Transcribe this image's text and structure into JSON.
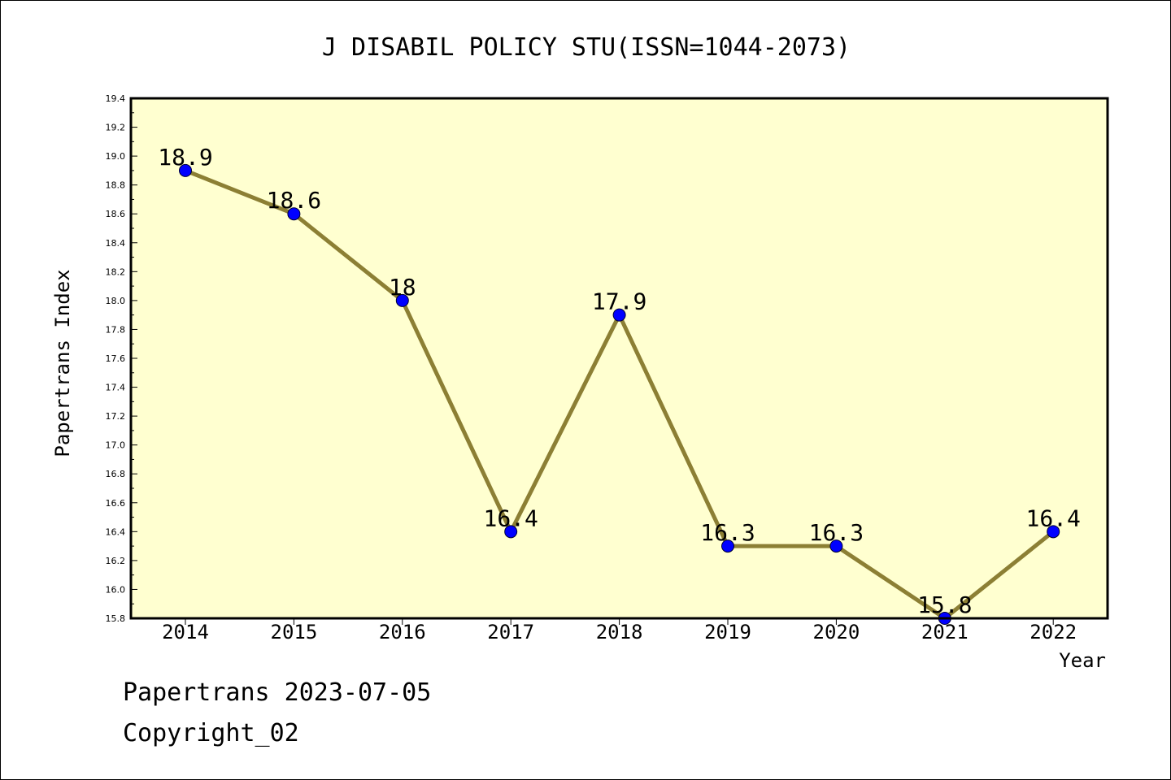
{
  "chart_data": {
    "type": "line",
    "title": "J DISABIL POLICY STU(ISSN=1044-2073)",
    "xlabel": "Year",
    "ylabel": "Papertrans Index",
    "categories": [
      "2014",
      "2015",
      "2016",
      "2017",
      "2018",
      "2019",
      "2020",
      "2021",
      "2022"
    ],
    "series": [
      {
        "name": "Papertrans Index",
        "values": [
          18.9,
          18.6,
          18.0,
          16.4,
          17.9,
          16.3,
          16.3,
          15.8,
          16.4
        ],
        "labels": [
          "18.9",
          "18.6",
          "18",
          "16.4",
          "17.9",
          "16.3",
          "16.3",
          "15.8",
          "16.4"
        ]
      }
    ],
    "ylim": [
      15.8,
      19.4
    ],
    "yticks": [
      "15.8",
      "16.0",
      "16.2",
      "16.4",
      "16.6",
      "16.8",
      "17.0",
      "17.2",
      "17.4",
      "17.6",
      "17.8",
      "18.0",
      "18.2",
      "18.4",
      "18.6",
      "18.8",
      "19.0",
      "19.2",
      "19.4"
    ],
    "grid": false,
    "colors": {
      "plot_background": "#ffffd0",
      "line": "#8c7f34",
      "marker": "#0000ff"
    }
  },
  "footer": {
    "source": "Papertrans 2023-07-05",
    "copyright": "Copyright_02"
  }
}
